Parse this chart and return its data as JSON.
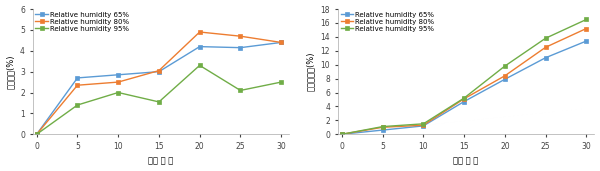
{
  "x": [
    0,
    5,
    10,
    15,
    20,
    25,
    30
  ],
  "xlabel": "저장 일 수",
  "left_ylabel": "갓신장율(%)",
  "right_ylabel": "중량감모율(%)",
  "legend_labels": [
    "Relative humidity 65%",
    "Relative humidity 80%",
    "Relative humidity 95%"
  ],
  "colors": [
    "#5b9bd5",
    "#ed7d31",
    "#70ad47"
  ],
  "left_65": [
    0,
    2.7,
    2.85,
    3.0,
    4.2,
    4.15,
    4.4
  ],
  "left_80": [
    0,
    2.35,
    2.5,
    3.05,
    4.9,
    4.7,
    4.4
  ],
  "left_95": [
    0,
    1.4,
    2.0,
    1.55,
    3.3,
    2.1,
    2.5
  ],
  "left_ylim": [
    0,
    6
  ],
  "left_yticks": [
    0,
    1,
    2,
    3,
    4,
    5,
    6
  ],
  "right_65": [
    0,
    0.6,
    1.2,
    4.7,
    7.9,
    11.0,
    13.4
  ],
  "right_80": [
    0,
    1.0,
    1.3,
    5.1,
    8.4,
    12.5,
    15.2
  ],
  "right_95": [
    0,
    1.1,
    1.5,
    5.2,
    9.8,
    13.8,
    16.5
  ],
  "right_ylim": [
    0,
    18
  ],
  "right_yticks": [
    0,
    2,
    4,
    6,
    8,
    10,
    12,
    14,
    16,
    18
  ],
  "xticks": [
    0,
    5,
    10,
    15,
    20,
    25,
    30
  ],
  "marker": "s",
  "linewidth": 1.0,
  "markersize": 3,
  "fontsize_label": 6,
  "fontsize_tick": 5.5,
  "fontsize_legend": 5.0
}
